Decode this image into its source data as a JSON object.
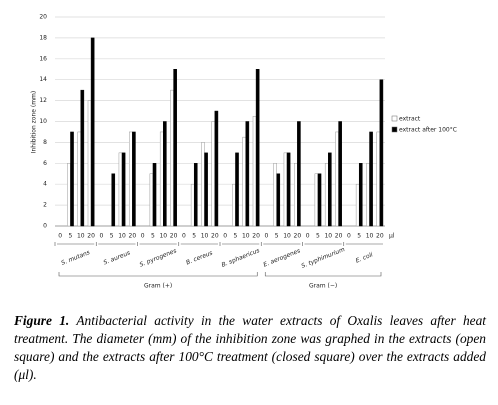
{
  "chart_data": {
    "type": "bar",
    "y_label": "Inhibition zone (mm)",
    "categories": [
      "0",
      "5",
      "10",
      "20",
      "0",
      "5",
      "10",
      "20",
      "0",
      "5",
      "10",
      "20",
      "0",
      "5",
      "10",
      "20",
      "0",
      "5",
      "10",
      "20",
      "0",
      "5",
      "10",
      "20",
      "0",
      "5",
      "10",
      "20",
      "0",
      "5",
      "10",
      "20"
    ],
    "x_unit": "μl",
    "group_labels": [
      "S. mutans",
      "S. aureus",
      "S. pyrogenes",
      "B. cereus",
      "B. sphaericus",
      "E. aerogenes",
      "S. typhimurium",
      "E. coli"
    ],
    "gram_labels": [
      "Gram (+)",
      "Gram (−)"
    ],
    "series": [
      {
        "name": "extract",
        "color": "#ffffff",
        "values": [
          0,
          6,
          9,
          12,
          0,
          0,
          7,
          9,
          0,
          5,
          9,
          13,
          0,
          4,
          8,
          10,
          0,
          4,
          8.5,
          10.5,
          0,
          6,
          7,
          6,
          0,
          5,
          6,
          9,
          0,
          4,
          6,
          9
        ]
      },
      {
        "name": "extract after 100°C",
        "color": "#000000",
        "values": [
          0,
          9,
          13,
          18,
          0,
          5,
          7,
          9,
          0,
          6,
          10,
          15,
          0,
          6,
          7,
          11,
          0,
          7,
          10,
          15,
          0,
          5,
          7,
          10,
          0,
          5,
          7,
          10,
          0,
          6,
          9,
          14
        ]
      }
    ],
    "ylim": [
      0,
      20
    ],
    "yticks": [
      0,
      2,
      4,
      6,
      8,
      10,
      12,
      14,
      16,
      18,
      20
    ],
    "grid": true,
    "legend": "right"
  },
  "caption": {
    "label": "Figure 1.",
    "text": "Antibacterial activity in the water extracts of Oxalis leaves after heat treatment. The diameter (mm) of the inhibition zone was graphed in the extracts (open square) and the extracts after 100°C treatment (closed square) over the extracts added (μl)."
  }
}
